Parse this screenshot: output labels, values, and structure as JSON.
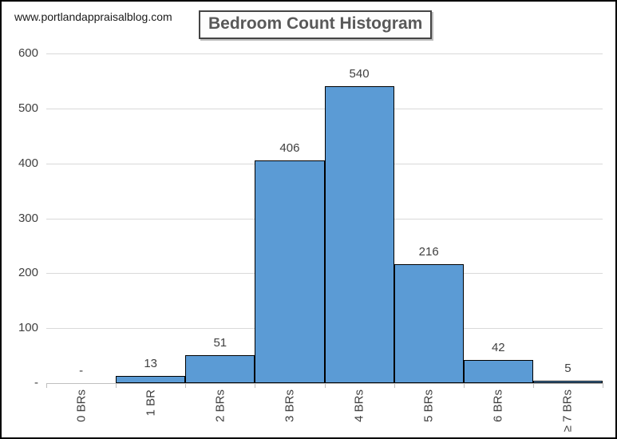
{
  "watermark": "www.portlandappraisalblog.com",
  "title": "Bedroom Count Histogram",
  "chart_data": {
    "type": "bar",
    "subtype": "histogram",
    "title": "Bedroom Count Histogram",
    "categories": [
      "0 BRs",
      "1 BR",
      "2 BRs",
      "3 BRs",
      "4 BRs",
      "5 BRs",
      "6 BRs",
      "≥ 7 BRs"
    ],
    "values": [
      0,
      13,
      51,
      406,
      540,
      216,
      42,
      5
    ],
    "data_labels": [
      "-",
      "13",
      "51",
      "406",
      "540",
      "216",
      "42",
      "5"
    ],
    "xlabel": "",
    "ylabel": "",
    "ylim": [
      0,
      600
    ],
    "y_ticks": [
      0,
      100,
      200,
      300,
      400,
      500,
      600
    ],
    "y_tick_labels": [
      "-",
      "100",
      "200",
      "300",
      "400",
      "500",
      "600"
    ],
    "grid": true,
    "legend": false,
    "bar_gap": 0,
    "colors": {
      "bar_fill": "#5b9bd5",
      "bar_border": "#000000",
      "gridline": "#d9d9d9",
      "axis_line": "#bfbfbf",
      "label_text": "#404040"
    }
  }
}
